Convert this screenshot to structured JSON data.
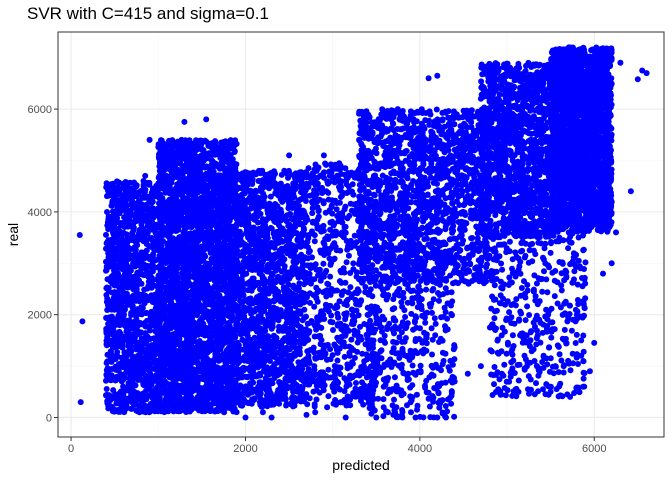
{
  "chart_data": {
    "type": "scatter",
    "title": "SVR with C=415 and sigma=0.1",
    "xlabel": "predicted",
    "ylabel": "real",
    "xlim": [
      -150,
      6800
    ],
    "ylim": [
      -380,
      7500
    ],
    "x_ticks": [
      0,
      2000,
      4000,
      6000
    ],
    "y_ticks": [
      0,
      2000,
      4000,
      6000
    ],
    "x_tick_labels": [
      "0",
      "2000",
      "4000",
      "6000"
    ],
    "y_tick_labels": [
      "0",
      "2000",
      "4000",
      "6000"
    ],
    "grid": true,
    "legend": "none",
    "colors": {
      "points": "#0000ff",
      "grid_major": "#ebebeb",
      "grid_minor": "#f5f5f5",
      "panel_border": "#333333"
    },
    "series": [
      {
        "clusters": [
          {
            "x": [
              1000,
              1900
            ],
            "y": [
              100,
              5400
            ],
            "n": 3200,
            "density": "very dense"
          },
          {
            "x": [
              400,
              1000
            ],
            "y": [
              100,
              4600
            ],
            "n": 1200,
            "density": "dense"
          },
          {
            "x": [
              1900,
              2700
            ],
            "y": [
              200,
              4800
            ],
            "n": 1600,
            "density": "dense"
          },
          {
            "x": [
              2700,
              3500
            ],
            "y": [
              200,
              5000
            ],
            "n": 700,
            "density": "medium"
          },
          {
            "x": [
              3300,
              4800
            ],
            "y": [
              2600,
              6000
            ],
            "n": 1700,
            "density": "dense"
          },
          {
            "x": [
              3400,
              4400
            ],
            "y": [
              0,
              2600
            ],
            "n": 350,
            "density": "sparse"
          },
          {
            "x": [
              4700,
              5500
            ],
            "y": [
              3500,
              6900
            ],
            "n": 1300,
            "density": "dense"
          },
          {
            "x": [
              5500,
              6200
            ],
            "y": [
              3600,
              7200
            ],
            "n": 2500,
            "density": "very dense"
          },
          {
            "x": [
              4800,
              5900
            ],
            "y": [
              400,
              3600
            ],
            "n": 420,
            "density": "sparse"
          }
        ],
        "points": [
          [
            100,
            3550
          ],
          [
            110,
            300
          ],
          [
            130,
            1870
          ],
          [
            5650,
            1000
          ],
          [
            5700,
            1100
          ],
          [
            5850,
            1200
          ],
          [
            5950,
            900
          ],
          [
            5200,
            1200
          ],
          [
            5150,
            1600
          ],
          [
            5050,
            1950
          ],
          [
            5500,
            500
          ],
          [
            5450,
            650
          ],
          [
            5100,
            550
          ],
          [
            6420,
            4400
          ],
          [
            6550,
            6750
          ],
          [
            6600,
            6700
          ],
          [
            6500,
            6580
          ],
          [
            6300,
            6900
          ],
          [
            4200,
            0
          ],
          [
            4300,
            0
          ],
          [
            4100,
            480
          ],
          [
            3950,
            0
          ],
          [
            3800,
            0
          ],
          [
            3500,
            0
          ],
          [
            3150,
            0
          ],
          [
            2800,
            100
          ],
          [
            2700,
            50
          ],
          [
            2300,
            0
          ],
          [
            2200,
            100
          ],
          [
            2000,
            0
          ],
          [
            1900,
            300
          ],
          [
            3200,
            350
          ],
          [
            3350,
            250
          ],
          [
            3450,
            700
          ],
          [
            4100,
            6600
          ],
          [
            4200,
            6650
          ],
          [
            3400,
            5100
          ],
          [
            2900,
            5100
          ],
          [
            2500,
            5100
          ],
          [
            1550,
            5800
          ],
          [
            1300,
            5750
          ],
          [
            900,
            5400
          ],
          [
            850,
            4700
          ],
          [
            830,
            4600
          ],
          [
            3800,
            1300
          ],
          [
            3700,
            1350
          ],
          [
            3600,
            1450
          ],
          [
            3300,
            1550
          ],
          [
            4700,
            1000
          ],
          [
            4550,
            850
          ],
          [
            4400,
            700
          ],
          [
            4350,
            1100
          ],
          [
            5850,
            1500
          ],
          [
            6000,
            1450
          ],
          [
            6200,
            3000
          ],
          [
            6250,
            3600
          ],
          [
            6200,
            4200
          ],
          [
            6100,
            2800
          ],
          [
            5800,
            2000
          ],
          [
            4850,
            650
          ]
        ]
      }
    ]
  }
}
